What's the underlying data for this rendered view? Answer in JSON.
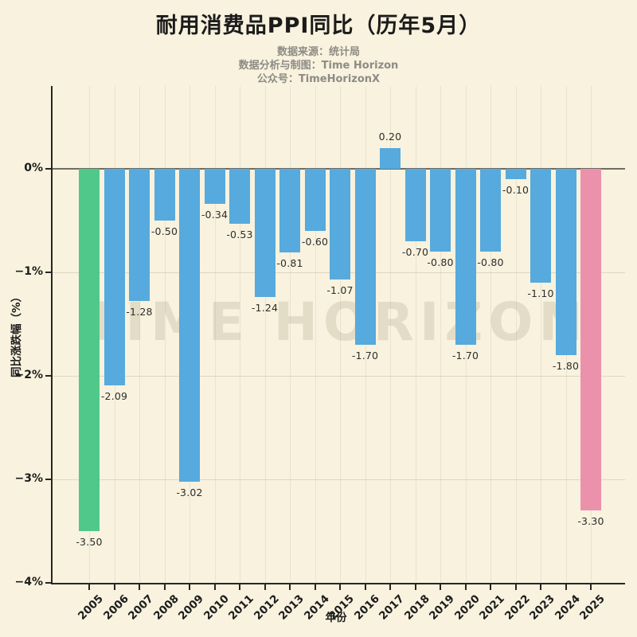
{
  "header": {
    "title": "耐用消费品PPI同比（历年5月）",
    "subtitles": [
      "数据来源：统计局",
      "数据分析与制图：Time Horizon",
      "公众号：TimeHorizonX"
    ]
  },
  "watermark": "TIME HORIZON",
  "colors": {
    "background": "#f8f2de",
    "title": "#1b1b1b",
    "subtitle": "#8d8b85",
    "watermark": "rgba(120,110,85,0.16)",
    "bar_default": "#56aadd",
    "bar_first": "#50c88a",
    "bar_last": "#ec91ac",
    "axis_spine": "#262626",
    "zero_line": "#6e6c64",
    "grid": "rgba(120,110,85,0.20)",
    "tick_label": "#1c1c1c",
    "value_label": "#2d2d2d"
  },
  "chart_data": {
    "type": "bar",
    "title": "耐用消费品PPI同比（历年5月）",
    "xlabel": "年份",
    "ylabel": "同比涨跌幅（%）",
    "categories": [
      "2005",
      "2006",
      "2007",
      "2008",
      "2009",
      "2010",
      "2011",
      "2012",
      "2013",
      "2014",
      "2015",
      "2016",
      "2017",
      "2018",
      "2019",
      "2020",
      "2021",
      "2022",
      "2023",
      "2024",
      "2025"
    ],
    "values": [
      -3.5,
      -2.09,
      -1.28,
      -0.5,
      -3.02,
      -0.34,
      -0.53,
      -1.24,
      -0.81,
      -0.6,
      -1.07,
      -1.7,
      0.2,
      -0.7,
      -0.8,
      -1.7,
      -0.8,
      -0.1,
      -1.1,
      -1.8,
      -3.3
    ],
    "value_labels": [
      "-3.50",
      "-2.09",
      "-1.28",
      "-0.50",
      "-3.02",
      "-0.34",
      "-0.53",
      "-1.24",
      "-0.81",
      "-0.60",
      "-1.07",
      "-1.70",
      "0.20",
      "-0.70",
      "-0.80",
      "-1.70",
      "-0.80",
      "-0.10",
      "-1.10",
      "-1.80",
      "-3.30"
    ],
    "bar_color_rule": {
      "first": "#50c88a",
      "last": "#ec91ac",
      "default": "#56aadd"
    },
    "yticks": [
      {
        "value": 0,
        "label": "0%"
      },
      {
        "value": -1,
        "label": "−1%"
      },
      {
        "value": -2,
        "label": "−2%"
      },
      {
        "value": -3,
        "label": "−3%"
      },
      {
        "value": -4,
        "label": "−4%"
      }
    ],
    "ylim": [
      -4,
      0.8
    ],
    "grid": true,
    "legend": false
  }
}
